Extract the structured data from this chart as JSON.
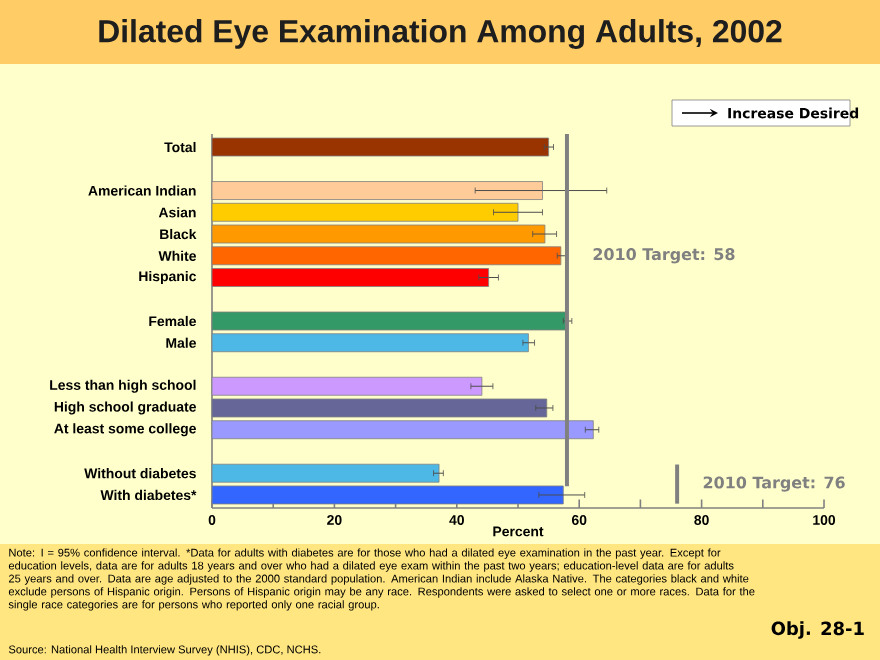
{
  "chart_data": {
    "type": "bar",
    "orientation": "horizontal",
    "title": "Dilated Eye Examination Among Adults, 2002",
    "xlabel": "Percent",
    "categories": [
      "Total",
      null,
      "American Indian",
      "Asian",
      "Black",
      "White",
      "Hispanic",
      null,
      "Female",
      "Male",
      null,
      "Less than high school",
      "High school graduate",
      "At least some college",
      null,
      "Without diabetes",
      "With diabetes*"
    ],
    "values": [
      55,
      null,
      54,
      50,
      54.4,
      57,
      45.2,
      null,
      58,
      51.7,
      null,
      44.1,
      54.7,
      62.3,
      null,
      37.1,
      57.4
    ],
    "errors": [
      [
        54.3,
        55.8
      ],
      null,
      [
        43,
        64.5
      ],
      [
        46,
        54
      ],
      [
        52.4,
        56.3
      ],
      [
        56.4,
        58
      ],
      [
        43.6,
        46.8
      ],
      null,
      [
        57.4,
        58.8
      ],
      [
        50.8,
        52.7
      ],
      null,
      [
        42.3,
        45.9
      ],
      [
        52.9,
        55.7
      ],
      [
        61,
        63.2
      ],
      null,
      [
        36.2,
        37.8
      ],
      [
        53.4,
        60.9
      ]
    ],
    "colors": [
      "#993300",
      null,
      "#ffcc99",
      "#ffcc00",
      "#ff9900",
      "#ff6600",
      "#ff0000",
      null,
      "#339966",
      "#4db8e6",
      null,
      "#cc99ff",
      "#666699",
      "#9999ff",
      null,
      "#4db8e6",
      "#3366ff"
    ],
    "xlim": [
      0,
      100
    ],
    "xticks": [
      0,
      {
        "value": 10,
        "label": null
      },
      20,
      {
        "value": 30,
        "label": null
      },
      40,
      {
        "value": 50,
        "label": null
      },
      60,
      {
        "value": 70,
        "label": null
      },
      80,
      {
        "value": 90,
        "label": null
      },
      100
    ],
    "ref_lines": [
      {
        "axis": "x",
        "value": 58,
        "label": "2010 Target: 58",
        "color": "#808080"
      },
      {
        "axis": "x",
        "value": 76,
        "label": "2010 Target: 76",
        "color": "#808080"
      }
    ],
    "annotations": [
      "Increase Desired",
      "Note: I = 95% confidence interval. *Data for adults with diabetes are for those who had a dilated eye examination in the past year. Except for education levels, data are for adults 18 years and over who had a dilated eye exam within the past two years; education-level data are for adults 25 years and over. Data are age adjusted to the 2000 standard population. American Indian include Alaska Native. The categories black and white exclude persons of Hispanic origin. Persons of Hispanic origin may be any race. Respondents were asked to select one or more races. Data for the single race categories are for persons who reported only one racial group.",
      "Source: National Health Interview Survey (NHIS), CDC, NCHS.",
      "Obj. 28-1"
    ]
  }
}
